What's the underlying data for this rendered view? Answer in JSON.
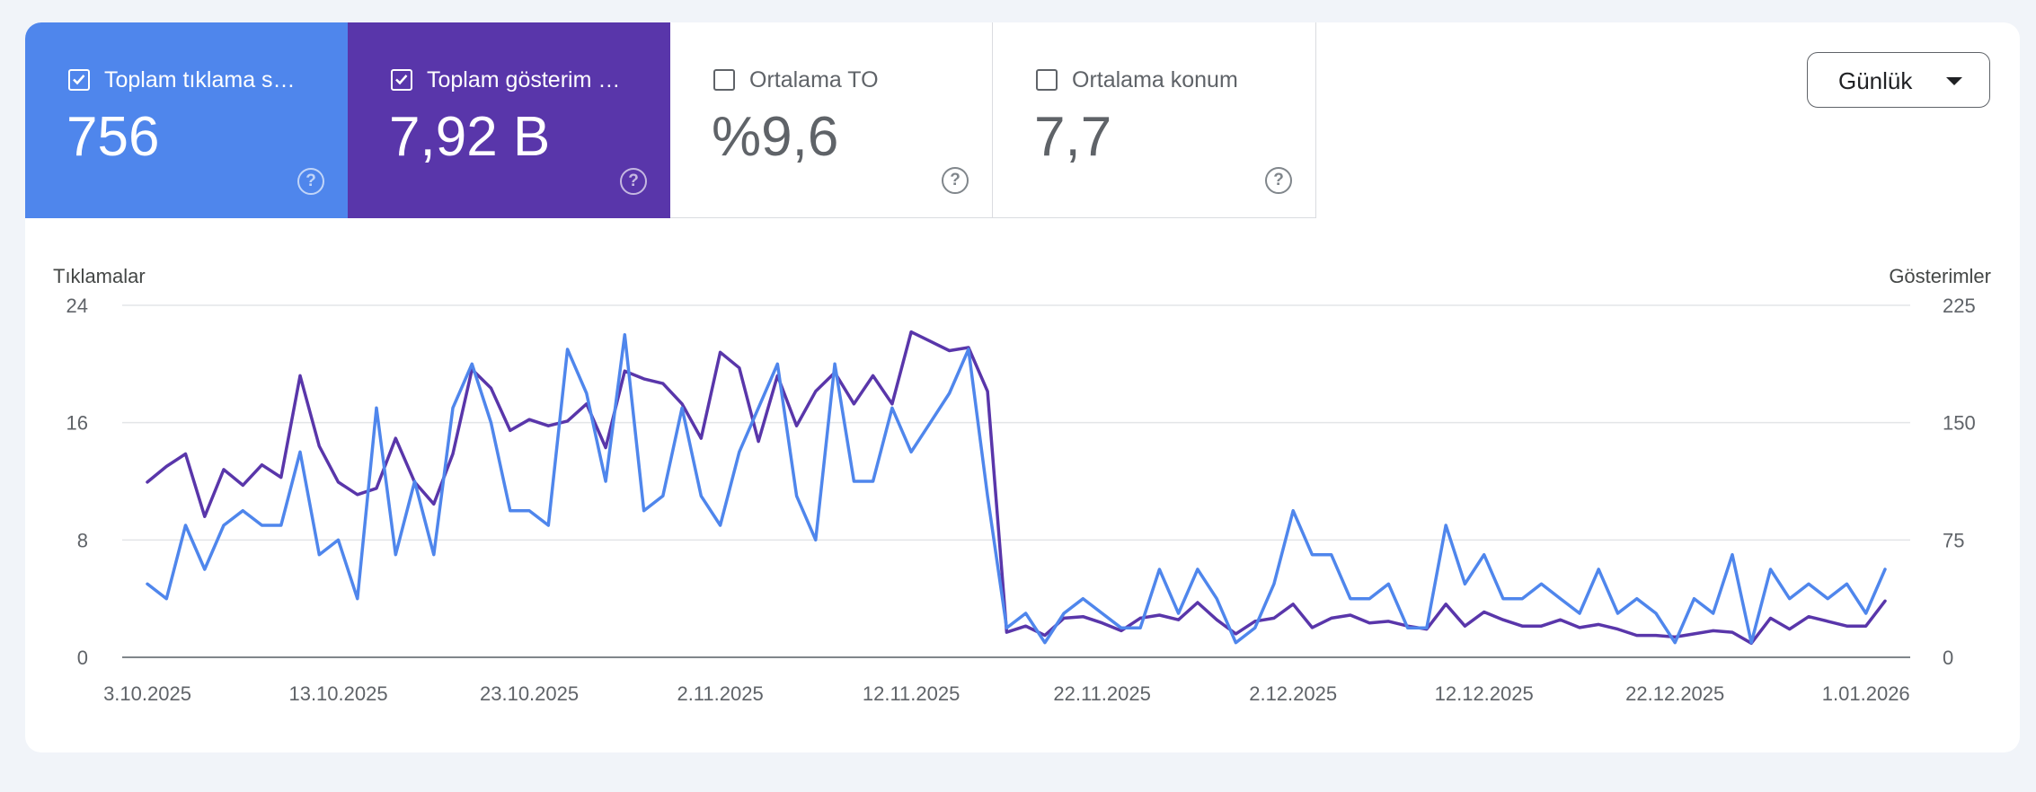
{
  "metrics": [
    {
      "label": "Toplam tıklama s…",
      "value": "756",
      "checked": true,
      "color": "#4f86ec",
      "help_icon": "help-circle-icon"
    },
    {
      "label": "Toplam gösterim …",
      "value": "7,92 B",
      "checked": true,
      "color": "#5936aa",
      "help_icon": "help-circle-icon"
    },
    {
      "label": "Ortalama TO",
      "value": "%9,6",
      "checked": false,
      "help_icon": "help-circle-icon"
    },
    {
      "label": "Ortalama konum",
      "value": "7,7",
      "checked": false,
      "help_icon": "help-circle-icon"
    }
  ],
  "period_select": {
    "value": "Günlük",
    "icon": "dropdown-arrow-icon"
  },
  "chart_data": {
    "type": "line",
    "left_axis_title": "Tıklamalar",
    "right_axis_title": "Gösterimler",
    "left_ylim": [
      0,
      24
    ],
    "right_ylim": [
      0,
      225
    ],
    "left_ticks": [
      "0",
      "8",
      "16",
      "24"
    ],
    "right_ticks": [
      "0",
      "75",
      "150",
      "225"
    ],
    "x_tick_labels": [
      "3.10.2025",
      "13.10.2025",
      "23.10.2025",
      "2.11.2025",
      "12.11.2025",
      "22.11.2025",
      "2.12.2025",
      "12.12.2025",
      "22.12.2025",
      "1.01.2026"
    ],
    "grid": true,
    "x_start": "3.10.2025",
    "x_end": "2.01.2026",
    "series": [
      {
        "name": "Toplam tıklama s…",
        "axis": "left",
        "color": "#4f86ec",
        "values": [
          5,
          4,
          9,
          6,
          9,
          10,
          9,
          9,
          14,
          7,
          8,
          4,
          17,
          7,
          12,
          7,
          17,
          20,
          16,
          10,
          10,
          9,
          21,
          18,
          12,
          22,
          10,
          11,
          17,
          11,
          9,
          14,
          17,
          20,
          11,
          8,
          20,
          12,
          12,
          17,
          14,
          16,
          18,
          21,
          11,
          2,
          3,
          1,
          3,
          4,
          3,
          2,
          2,
          6,
          3,
          6,
          4,
          1,
          2,
          5,
          10,
          7,
          7,
          4,
          4,
          5,
          2,
          2,
          9,
          5,
          7,
          4,
          4,
          5,
          4,
          3,
          6,
          3,
          4,
          3,
          1,
          4,
          3,
          7,
          1,
          6,
          4,
          5,
          4,
          5,
          3,
          6
        ]
      },
      {
        "name": "Toplam gösterim …",
        "axis": "right",
        "color": "#5936aa",
        "values": [
          112,
          122,
          130,
          90,
          120,
          110,
          123,
          115,
          180,
          135,
          112,
          104,
          108,
          140,
          112,
          98,
          130,
          184,
          172,
          145,
          152,
          148,
          151,
          162,
          134,
          183,
          178,
          175,
          162,
          140,
          195,
          185,
          138,
          180,
          148,
          170,
          182,
          162,
          180,
          162,
          208,
          202,
          196,
          198,
          170,
          16,
          20,
          14,
          25,
          26,
          22,
          17,
          25,
          27,
          24,
          35,
          24,
          15,
          23,
          25,
          34,
          19,
          25,
          27,
          22,
          23,
          20,
          18,
          34,
          20,
          29,
          24,
          20,
          20,
          24,
          19,
          21,
          18,
          14,
          14,
          13,
          15,
          17,
          16,
          9,
          25,
          18,
          26,
          23,
          20,
          20,
          36
        ]
      }
    ]
  }
}
